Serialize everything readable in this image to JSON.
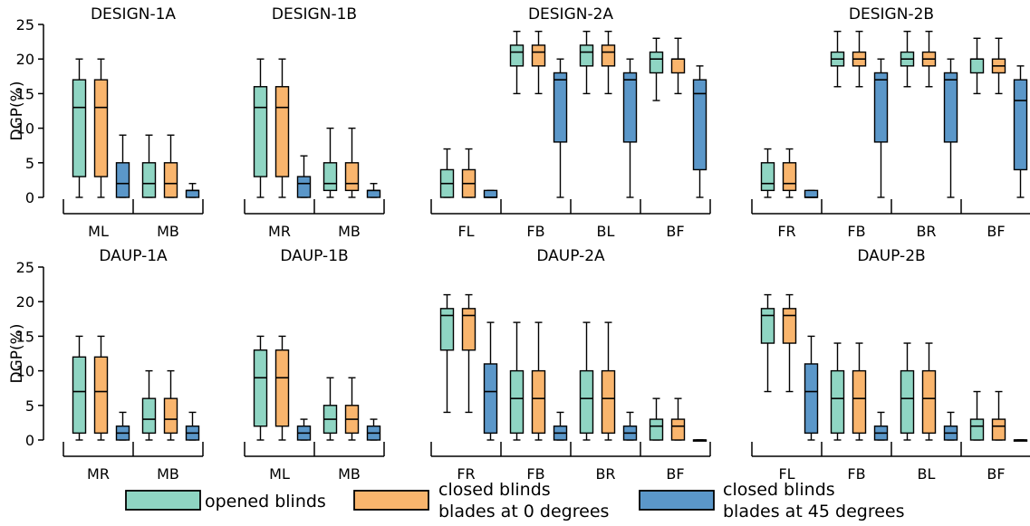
{
  "colors": {
    "opened": "#8fd5c3",
    "closed0": "#f9b56d",
    "closed45": "#5b97c9"
  },
  "legend": [
    {
      "key": "opened",
      "lines": [
        "opened blinds"
      ]
    },
    {
      "key": "closed0",
      "lines": [
        "closed blinds",
        "blades at 0 degrees"
      ]
    },
    {
      "key": "closed45",
      "lines": [
        "closed blinds",
        "blades at 45 degrees"
      ]
    }
  ],
  "chart_data": [
    {
      "type": "box",
      "title": "DESIGN-1A",
      "ylabel": "DGP(%)",
      "ylim": [
        0,
        25
      ],
      "yticks": [
        0,
        5,
        10,
        15,
        20,
        25
      ],
      "groups": [
        {
          "label": "ML",
          "boxes": [
            [
              0,
              3,
              13,
              17,
              20
            ],
            [
              0,
              3,
              13,
              17,
              20
            ],
            [
              0,
              0,
              2,
              5,
              9
            ]
          ]
        },
        {
          "label": "MB",
          "boxes": [
            [
              0,
              0,
              2,
              5,
              9
            ],
            [
              0,
              0,
              2,
              5,
              9
            ],
            [
              0,
              0,
              1,
              1,
              2
            ]
          ]
        }
      ]
    },
    {
      "type": "box",
      "title": "DESIGN-1B",
      "ylim": [
        0,
        25
      ],
      "groups": [
        {
          "label": "MR",
          "boxes": [
            [
              0,
              3,
              13,
              16,
              20
            ],
            [
              0,
              3,
              13,
              16,
              20
            ],
            [
              0,
              0,
              2,
              3,
              6
            ]
          ]
        },
        {
          "label": "MB",
          "boxes": [
            [
              0,
              1,
              2,
              5,
              10
            ],
            [
              0,
              1,
              2,
              5,
              10
            ],
            [
              0,
              0,
              1,
              1,
              2
            ]
          ]
        }
      ]
    },
    {
      "type": "box",
      "title": "DESIGN-2A",
      "ylim": [
        0,
        25
      ],
      "groups": [
        {
          "label": "FL",
          "boxes": [
            [
              0,
              0,
              2,
              4,
              7
            ],
            [
              0,
              0,
              2,
              4,
              7
            ],
            [
              0,
              0,
              0,
              1,
              1
            ]
          ]
        },
        {
          "label": "FB",
          "boxes": [
            [
              15,
              19,
              21,
              22,
              24
            ],
            [
              15,
              19,
              21,
              22,
              24
            ],
            [
              0,
              8,
              17,
              18,
              20
            ]
          ]
        },
        {
          "label": "BL",
          "boxes": [
            [
              15,
              19,
              21,
              22,
              24
            ],
            [
              15,
              19,
              21,
              22,
              24
            ],
            [
              0,
              8,
              17,
              18,
              20
            ]
          ]
        },
        {
          "label": "BF",
          "boxes": [
            [
              14,
              18,
              20,
              21,
              23
            ],
            [
              15,
              18,
              20,
              20,
              23
            ],
            [
              0,
              4,
              15,
              17,
              19
            ]
          ]
        }
      ]
    },
    {
      "type": "box",
      "title": "DESIGN-2B",
      "ylim": [
        0,
        25
      ],
      "groups": [
        {
          "label": "FR",
          "boxes": [
            [
              0,
              1,
              2,
              5,
              7
            ],
            [
              0,
              1,
              2,
              5,
              7
            ],
            [
              0,
              0,
              0,
              1,
              1
            ]
          ]
        },
        {
          "label": "FB",
          "boxes": [
            [
              16,
              19,
              20,
              21,
              24
            ],
            [
              16,
              19,
              20,
              21,
              24
            ],
            [
              0,
              8,
              17,
              18,
              20
            ]
          ]
        },
        {
          "label": "BR",
          "boxes": [
            [
              16,
              19,
              20,
              21,
              24
            ],
            [
              16,
              19,
              20,
              21,
              24
            ],
            [
              0,
              8,
              17,
              18,
              20
            ]
          ]
        },
        {
          "label": "BF",
          "boxes": [
            [
              15,
              18,
              20,
              20,
              23
            ],
            [
              15,
              18,
              19,
              20,
              23
            ],
            [
              0,
              4,
              14,
              17,
              19
            ]
          ]
        }
      ]
    },
    {
      "type": "box",
      "title": "DAUP-1A",
      "ylabel": "DGP(%)",
      "ylim": [
        0,
        25
      ],
      "yticks": [
        0,
        5,
        10,
        15,
        20,
        25
      ],
      "groups": [
        {
          "label": "MR",
          "boxes": [
            [
              0,
              1,
              7,
              12,
              15
            ],
            [
              0,
              1,
              7,
              12,
              15
            ],
            [
              0,
              0,
              1,
              2,
              4
            ]
          ]
        },
        {
          "label": "MB",
          "boxes": [
            [
              0,
              1,
              3,
              6,
              10
            ],
            [
              0,
              1,
              3,
              6,
              10
            ],
            [
              0,
              0,
              1,
              2,
              4
            ]
          ]
        }
      ]
    },
    {
      "type": "box",
      "title": "DAUP-1B",
      "ylim": [
        0,
        25
      ],
      "groups": [
        {
          "label": "ML",
          "boxes": [
            [
              0,
              2,
              9,
              13,
              15
            ],
            [
              0,
              2,
              9,
              13,
              15
            ],
            [
              0,
              0,
              1,
              2,
              3
            ]
          ]
        },
        {
          "label": "MB",
          "boxes": [
            [
              0,
              1,
              3,
              5,
              9
            ],
            [
              0,
              1,
              3,
              5,
              9
            ],
            [
              0,
              0,
              1,
              2,
              3
            ]
          ]
        }
      ]
    },
    {
      "type": "box",
      "title": "DAUP-2A",
      "ylim": [
        0,
        25
      ],
      "groups": [
        {
          "label": "FR",
          "boxes": [
            [
              4,
              13,
              18,
              19,
              21
            ],
            [
              4,
              13,
              18,
              19,
              21
            ],
            [
              0,
              1,
              7,
              11,
              17
            ]
          ]
        },
        {
          "label": "FB",
          "boxes": [
            [
              0,
              1,
              6,
              10,
              17
            ],
            [
              0,
              1,
              6,
              10,
              17
            ],
            [
              0,
              0,
              1,
              2,
              4
            ]
          ]
        },
        {
          "label": "BR",
          "boxes": [
            [
              0,
              1,
              6,
              10,
              17
            ],
            [
              0,
              1,
              6,
              10,
              17
            ],
            [
              0,
              0,
              1,
              2,
              4
            ]
          ]
        },
        {
          "label": "BF",
          "boxes": [
            [
              0,
              0,
              2,
              3,
              6
            ],
            [
              0,
              0,
              2,
              3,
              6
            ],
            [
              0,
              0,
              0,
              0,
              0
            ]
          ]
        }
      ]
    },
    {
      "type": "box",
      "title": "DAUP-2B",
      "ylim": [
        0,
        25
      ],
      "groups": [
        {
          "label": "FL",
          "boxes": [
            [
              7,
              14,
              18,
              19,
              21
            ],
            [
              7,
              14,
              18,
              19,
              21
            ],
            [
              0,
              1,
              7,
              11,
              15
            ]
          ]
        },
        {
          "label": "FB",
          "boxes": [
            [
              0,
              1,
              6,
              10,
              14
            ],
            [
              0,
              1,
              6,
              10,
              14
            ],
            [
              0,
              0,
              1,
              2,
              4
            ]
          ]
        },
        {
          "label": "BL",
          "boxes": [
            [
              0,
              1,
              6,
              10,
              14
            ],
            [
              0,
              1,
              6,
              10,
              14
            ],
            [
              0,
              0,
              1,
              2,
              4
            ]
          ]
        },
        {
          "label": "BF",
          "boxes": [
            [
              0,
              0,
              2,
              3,
              7
            ],
            [
              0,
              0,
              2,
              3,
              7
            ],
            [
              0,
              0,
              0,
              0,
              0
            ]
          ]
        }
      ]
    }
  ]
}
